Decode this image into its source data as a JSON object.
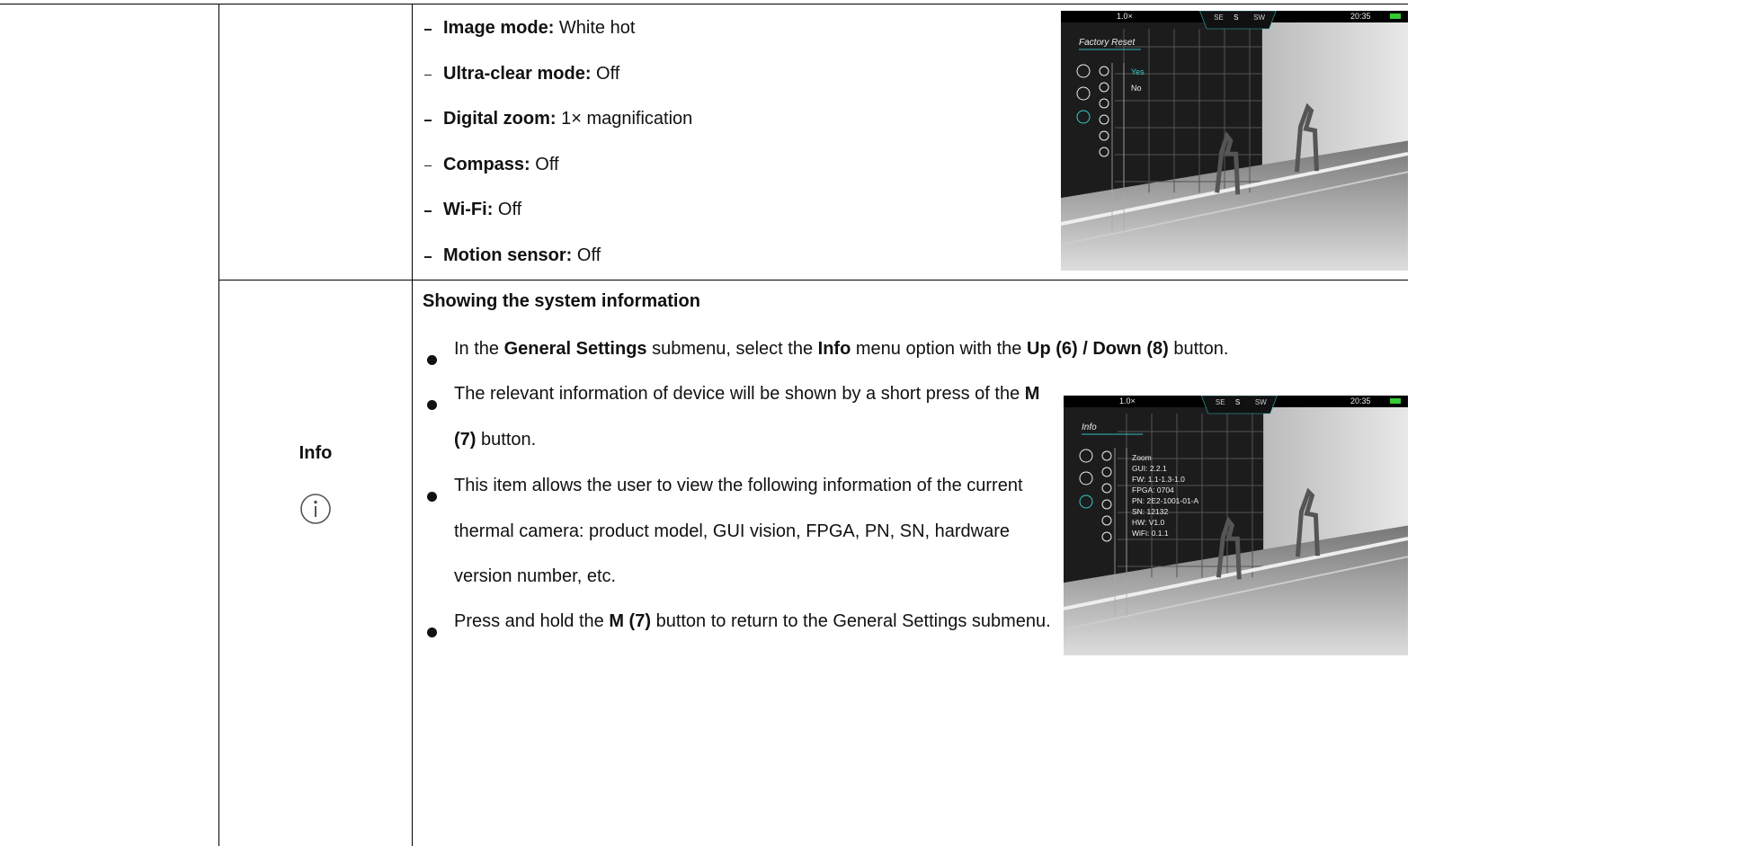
{
  "rows": [
    {
      "items": [
        {
          "label": "Image mode:",
          "text": " White hot"
        },
        {
          "label": "Ultra-clear mode:",
          "text": " Off"
        },
        {
          "label": "Digital zoom:",
          "text": " 1× magnification"
        },
        {
          "label": "Compass:",
          "text": " Off"
        },
        {
          "label": "Wi-Fi:",
          "text": " Off"
        },
        {
          "label": "Motion sensor:",
          "text": " Off"
        }
      ],
      "screen": {
        "zoom": "1.0×",
        "compass": [
          "SE",
          "S",
          "SW"
        ],
        "time": "20:35",
        "title": "Factory Reset",
        "options": [
          "Yes",
          "No"
        ]
      }
    },
    {
      "label": "Info",
      "heading": "Showing the system information",
      "bullets": [
        [
          "In the ",
          {
            "b": "General Settings"
          },
          " submenu, select the ",
          {
            "b": "Info"
          },
          " menu option with the ",
          {
            "b": "Up (6) / Down (8)"
          },
          " button."
        ],
        [
          "The relevant information of device will be shown by a short press of the ",
          {
            "b": "M (7)"
          },
          " button."
        ],
        [
          "This item allows the user to view the following information of the current thermal camera: product model, GUI vision, FPGA, PN, SN, hardware version number, etc."
        ],
        [
          "Press and hold the ",
          {
            "b": "M (7)"
          },
          " button to return to the General Settings submenu."
        ]
      ],
      "screen": {
        "zoom": "1.0×",
        "compass": [
          "SE",
          "S",
          "SW"
        ],
        "time": "20:35",
        "title": "Info",
        "lines": [
          "Zoom",
          "GUI: 2.2.1",
          "FW: 1.1-1.3-1.0",
          "FPGA: 0704",
          "PN: 2E2-1001-01-A",
          "SN: 12132",
          "HW: V1.0",
          "WiFi: 0.1.1"
        ]
      }
    }
  ]
}
